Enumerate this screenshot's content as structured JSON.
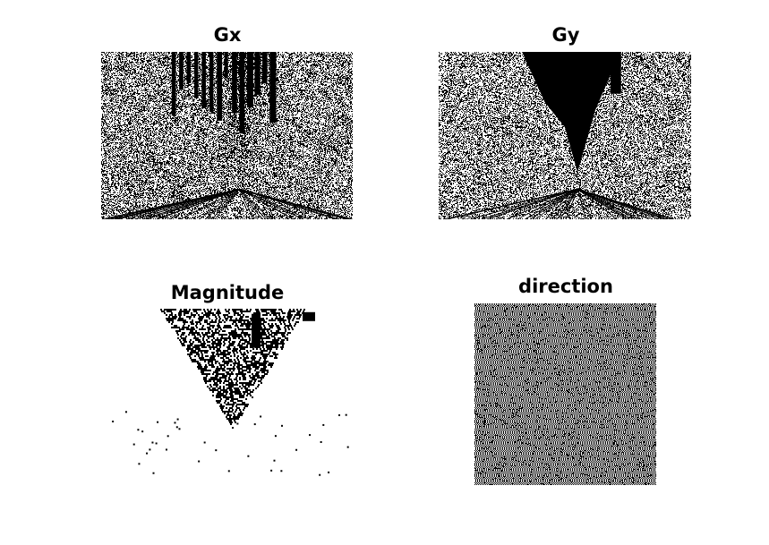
{
  "figure": {
    "panels": [
      {
        "title": "Gx"
      },
      {
        "title": "Gy"
      },
      {
        "title": "Magnitude"
      },
      {
        "title": "direction"
      }
    ],
    "colors": {
      "background": "#ffffff",
      "ink": "#000000"
    }
  }
}
